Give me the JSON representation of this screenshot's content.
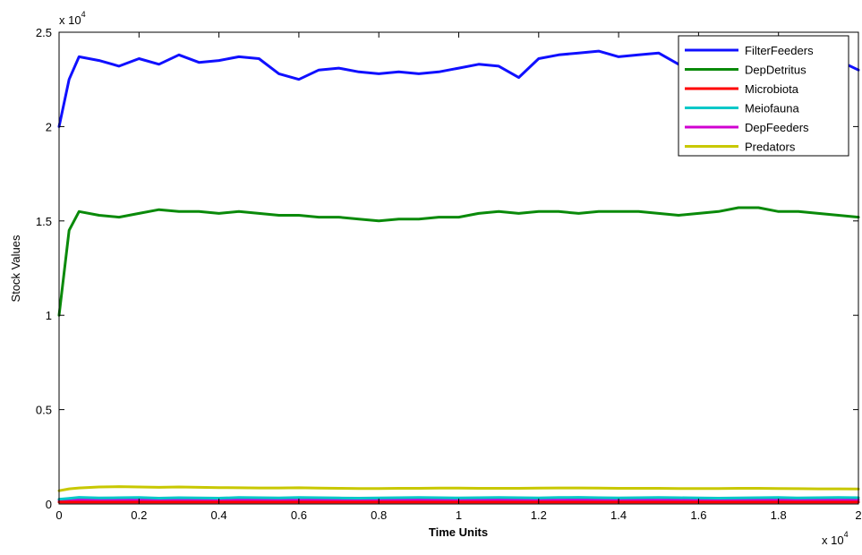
{
  "chart_data": {
    "type": "line",
    "title": "",
    "xlabel": "Time Units",
    "ylabel": "Stock Values",
    "x_exponent_label": "x 10",
    "x_exponent_power": "4",
    "y_exponent_label": "x 10",
    "y_exponent_power": "4",
    "xlim": [
      0,
      20000
    ],
    "ylim": [
      0,
      25000
    ],
    "x_ticks": [
      0,
      2000,
      4000,
      6000,
      8000,
      10000,
      12000,
      14000,
      16000,
      18000,
      20000
    ],
    "x_tick_labels": [
      "0",
      "0.2",
      "0.4",
      "0.6",
      "0.8",
      "1",
      "1.2",
      "1.4",
      "1.6",
      "1.8",
      "2"
    ],
    "y_ticks": [
      0,
      5000,
      10000,
      15000,
      20000,
      25000
    ],
    "y_tick_labels": [
      "0",
      "0.5",
      "1",
      "1.5",
      "2",
      "2.5"
    ],
    "grid": false,
    "legend_position": "top-right",
    "x": [
      0,
      250,
      500,
      1000,
      1500,
      2000,
      2500,
      3000,
      3500,
      4000,
      4500,
      5000,
      5500,
      6000,
      6500,
      7000,
      7500,
      8000,
      8500,
      9000,
      9500,
      10000,
      10500,
      11000,
      11500,
      12000,
      12500,
      13000,
      13500,
      14000,
      14500,
      15000,
      15500,
      16000,
      16500,
      17000,
      17500,
      18000,
      18500,
      19000,
      19500,
      20000
    ],
    "series": [
      {
        "name": "FilterFeeders",
        "color": "#1010ff",
        "values": [
          20000,
          22500,
          23700,
          23500,
          23200,
          23600,
          23300,
          23800,
          23400,
          23500,
          23700,
          23600,
          22800,
          22500,
          23000,
          23100,
          22900,
          22800,
          22900,
          22800,
          22900,
          23100,
          23300,
          23200,
          22600,
          23600,
          23800,
          23900,
          24000,
          23700,
          23800,
          23900,
          23300,
          23400,
          23200,
          23300,
          23400,
          23200,
          23300,
          23400,
          23500,
          23000
        ]
      },
      {
        "name": "DepDetritus",
        "color": "#0a8a0a",
        "values": [
          10000,
          14500,
          15500,
          15300,
          15200,
          15400,
          15600,
          15500,
          15500,
          15400,
          15500,
          15400,
          15300,
          15300,
          15200,
          15200,
          15100,
          15000,
          15100,
          15100,
          15200,
          15200,
          15400,
          15500,
          15400,
          15500,
          15500,
          15400,
          15500,
          15500,
          15500,
          15400,
          15300,
          15400,
          15500,
          15700,
          15700,
          15500,
          15500,
          15400,
          15300,
          15200
        ]
      },
      {
        "name": "Microbiota",
        "color": "#ff0000",
        "values": [
          100,
          100,
          100,
          100,
          100,
          100,
          100,
          100,
          100,
          100,
          100,
          100,
          100,
          100,
          100,
          100,
          100,
          100,
          100,
          100,
          100,
          100,
          100,
          100,
          100,
          100,
          100,
          100,
          100,
          100,
          100,
          100,
          100,
          100,
          100,
          100,
          100,
          100,
          100,
          100,
          100,
          100
        ]
      },
      {
        "name": "Meiofauna",
        "color": "#00c8c8",
        "values": [
          250,
          300,
          350,
          320,
          330,
          340,
          310,
          330,
          320,
          310,
          340,
          330,
          320,
          340,
          330,
          320,
          310,
          320,
          330,
          340,
          330,
          320,
          330,
          340,
          330,
          320,
          340,
          350,
          330,
          320,
          330,
          340,
          330,
          320,
          310,
          320,
          330,
          340,
          320,
          330,
          340,
          330
        ]
      },
      {
        "name": "DepFeeders",
        "color": "#d000d0",
        "values": [
          200,
          220,
          230,
          220,
          210,
          220,
          230,
          220,
          210,
          220,
          220,
          230,
          220,
          210,
          220,
          230,
          220,
          210,
          220,
          220,
          230,
          220,
          210,
          220,
          230,
          220,
          210,
          220,
          220,
          230,
          220,
          210,
          220,
          230,
          220,
          210,
          220,
          220,
          230,
          220,
          210,
          220
        ]
      },
      {
        "name": "Predators",
        "color": "#c8c800",
        "values": [
          700,
          800,
          850,
          900,
          920,
          900,
          880,
          900,
          880,
          870,
          860,
          850,
          850,
          860,
          840,
          830,
          820,
          820,
          830,
          830,
          840,
          840,
          830,
          830,
          830,
          840,
          850,
          850,
          840,
          830,
          830,
          830,
          820,
          820,
          820,
          830,
          830,
          820,
          810,
          800,
          800,
          790
        ]
      }
    ]
  }
}
